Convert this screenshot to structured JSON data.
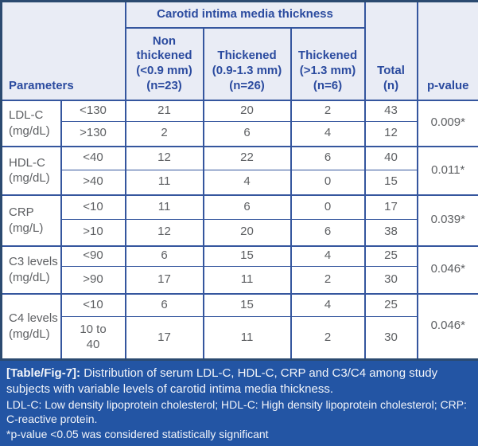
{
  "colors": {
    "header_bg": "#e9ecf5",
    "header_text": "#2b4b9f",
    "grid_line": "#35569e",
    "outer_border": "#2b4a70",
    "body_text": "#5e6063",
    "footer_bg": "#2355a4",
    "footer_text": "#f2f4f9"
  },
  "table": {
    "header": {
      "parameters_label": "Parameters",
      "group_title": "Carotid intima media thickness",
      "columns": [
        "Non\nthickened\n(<0.9 mm)\n(n=23)",
        "Thickened\n(0.9-1.3 mm)\n(n=26)",
        "Thickened\n(>1.3 mm)\n(n=6)"
      ],
      "total_label": "Total\n(n)",
      "pvalue_label": "p-value"
    },
    "groups": [
      {
        "parameter": "LDL-C\n(mg/dL)",
        "p_value": "0.009*",
        "rows": [
          {
            "category": "<130",
            "values": [
              "21",
              "20",
              "2",
              "43"
            ]
          },
          {
            "category": ">130",
            "values": [
              "2",
              "6",
              "4",
              "12"
            ]
          }
        ]
      },
      {
        "parameter": "HDL-C\n(mg/dL)",
        "p_value": "0.011*",
        "rows": [
          {
            "category": "<40",
            "values": [
              "12",
              "22",
              "6",
              "40"
            ]
          },
          {
            "category": ">40",
            "values": [
              "11",
              "4",
              "0",
              "15"
            ]
          }
        ]
      },
      {
        "parameter": "CRP\n(mg/L)",
        "p_value": "0.039*",
        "rows": [
          {
            "category": "<10",
            "values": [
              "11",
              "6",
              "0",
              "17"
            ]
          },
          {
            "category": ">10",
            "values": [
              "12",
              "20",
              "6",
              "38"
            ]
          }
        ]
      },
      {
        "parameter": "C3 levels\n(mg/dL)",
        "p_value": "0.046*",
        "rows": [
          {
            "category": "<90",
            "values": [
              "6",
              "15",
              "4",
              "25"
            ]
          },
          {
            "category": ">90",
            "values": [
              "17",
              "11",
              "2",
              "30"
            ]
          }
        ]
      },
      {
        "parameter": "C4 levels\n(mg/dL)",
        "p_value": "0.046*",
        "rows": [
          {
            "category": "<10",
            "values": [
              "6",
              "15",
              "4",
              "25"
            ]
          },
          {
            "category": "10 to\n40",
            "values": [
              "17",
              "11",
              "2",
              "30"
            ]
          }
        ]
      }
    ]
  },
  "footer": {
    "label": "[Table/Fig-7]:",
    "caption_rest": " Distribution of serum LDL-C, HDL-C, CRP and C3/C4 among study subjects with variable levels of carotid intima media thickness.",
    "abbreviations": "LDL-C: Low density lipoprotein cholesterol; HDL-C: High density lipoprotein cholesterol; CRP: C-reactive protein.",
    "significance_note": "*p-value <0.05 was considered statistically significant"
  }
}
